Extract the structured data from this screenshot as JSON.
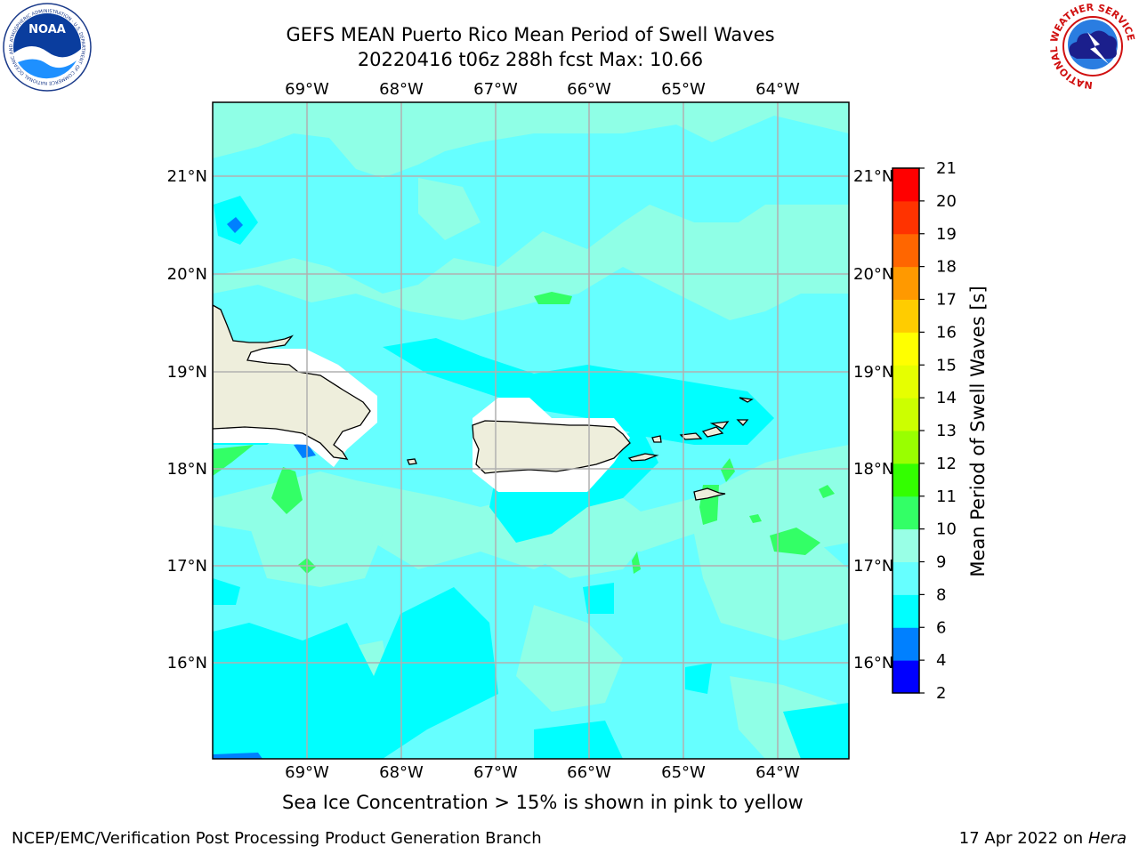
{
  "header": {
    "title_line1": "GEFS MEAN Puerto Rico Mean Period of Swell Waves",
    "title_line2": "20220416 t06z 288h fcst   Max: 10.66"
  },
  "map": {
    "lon_labels": [
      "69°W",
      "68°W",
      "67°W",
      "66°W",
      "65°W",
      "64°W"
    ],
    "lat_labels": [
      "21°N",
      "20°N",
      "19°N",
      "18°N",
      "17°N",
      "16°N"
    ],
    "ocean_color": "#8fffe6",
    "land_color": "#eeeedc",
    "place_labels": []
  },
  "colorbar": {
    "label": "Mean Period of Swell Waves [s]",
    "ticks": [
      "2",
      "4",
      "6",
      "8",
      "9",
      "10",
      "11",
      "12",
      "13",
      "14",
      "15",
      "16",
      "17",
      "18",
      "19",
      "20",
      "21"
    ],
    "colors": [
      "#0000ff",
      "#0080ff",
      "#00ffff",
      "#66ffff",
      "#99ffe6",
      "#33ff66",
      "#33ff00",
      "#99ff00",
      "#ccff00",
      "#e6ff00",
      "#ffff00",
      "#ffcc00",
      "#ff9900",
      "#ff6600",
      "#ff3300",
      "#ff0000"
    ]
  },
  "logos": {
    "noaa_text": "NOAA",
    "noaa_ring": "NATIONAL OCEANIC AND ATMOSPHERIC ADMINISTRATION · U.S. DEPARTMENT OF COMMERCE",
    "nws_ring": "NATIONAL WEATHER SERVICE"
  },
  "footer": {
    "note": "Sea Ice Concentration > 15% is shown in pink to yellow",
    "left": "NCEP/EMC/Verification Post Processing Product Generation Branch",
    "right_prefix": "17 Apr 2022 on ",
    "right_host": "Hera"
  }
}
